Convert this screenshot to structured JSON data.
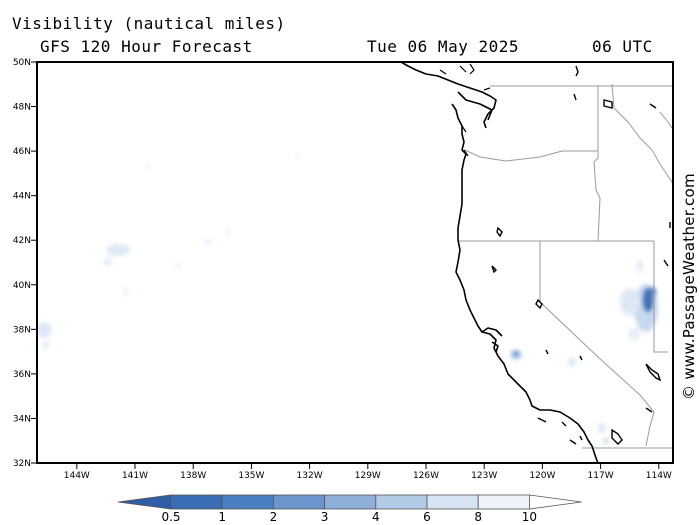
{
  "header": {
    "title": "Visibility (nautical miles)",
    "model": "GFS 120 Hour Forecast",
    "date": "Tue 06 May 2025",
    "time": "06 UTC"
  },
  "lat_labels": [
    "50N",
    "48N",
    "46N",
    "44N",
    "42N",
    "40N",
    "38N",
    "36N",
    "34N",
    "32N"
  ],
  "lon_labels": [
    "144W",
    "141W",
    "138W",
    "135W",
    "132W",
    "129W",
    "126W",
    "123W",
    "120W",
    "117W",
    "114W"
  ],
  "colorbar": {
    "labels": [
      "0.5",
      "1",
      "2",
      "3",
      "4",
      "6",
      "8",
      "10"
    ],
    "colors": [
      "#3a6db5",
      "#4b7fc2",
      "#6b95cc",
      "#8eafd8",
      "#b3cae5",
      "#d6e3f2",
      "#eef3fa",
      "#ffffff"
    ]
  },
  "credit": "© www.PassageWeather.com",
  "colors": {
    "coast": "#000000",
    "borders": "#9a9a9a",
    "fog_light": "#dde8f5",
    "fog_mid": "#a9c2e2",
    "fog_dark": "#3f6fb3"
  }
}
